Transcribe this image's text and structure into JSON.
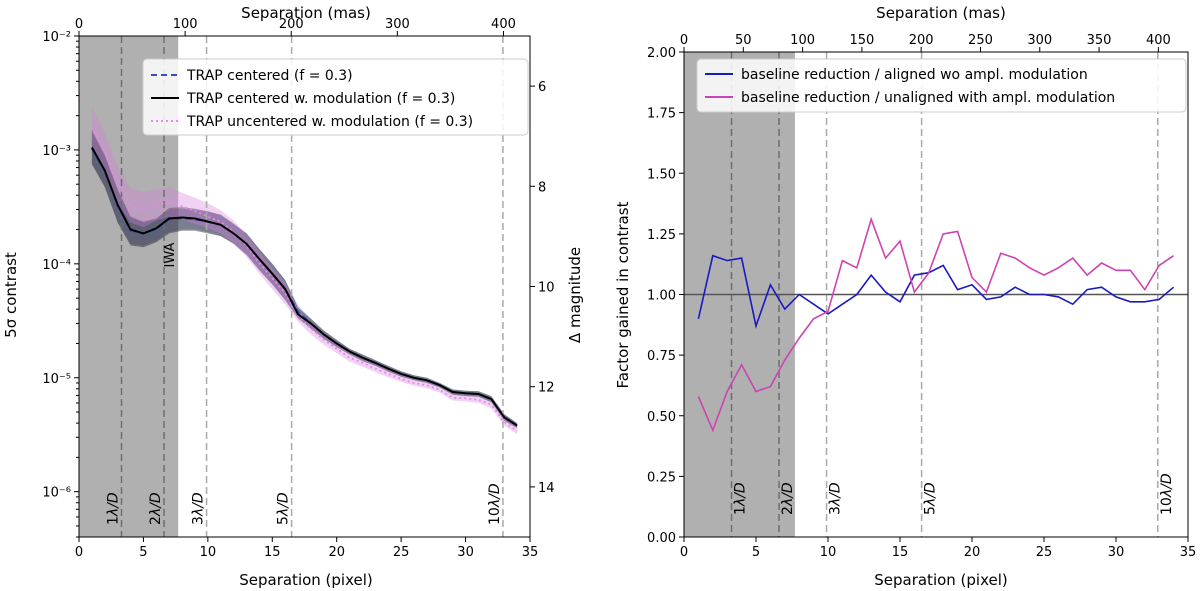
{
  "chart_data": [
    {
      "type": "line",
      "id": "left",
      "xlabel": "Separation (pixel)",
      "x2label": "Separation (mas)",
      "ylabel": "5σ contrast",
      "y2label": "Δ magnitude",
      "xlim": [
        0,
        35
      ],
      "x2lim": [
        0,
        425
      ],
      "ylim": [
        4e-07,
        0.01
      ],
      "y2lim": [
        5,
        15
      ],
      "yscale": "log",
      "xticks": [
        0,
        5,
        10,
        15,
        20,
        25,
        30,
        35
      ],
      "x2ticks": [
        0,
        100,
        200,
        300,
        400
      ],
      "yticks": [
        {
          "v": 1e-06,
          "label": "10⁻⁶"
        },
        {
          "v": 1e-05,
          "label": "10⁻⁵"
        },
        {
          "v": 0.0001,
          "label": "10⁻⁴"
        },
        {
          "v": 0.001,
          "label": "10⁻³"
        },
        {
          "v": 0.01,
          "label": "10⁻²"
        }
      ],
      "y2ticks": [
        6,
        8,
        10,
        12,
        14
      ],
      "shaded_region": {
        "from": 0,
        "to": 7.7,
        "label": "IWA"
      },
      "vlines": [
        {
          "x": 3.3,
          "label": "1λ/D"
        },
        {
          "x": 6.6,
          "label": "2λ/D"
        },
        {
          "x": 9.9,
          "label": "3λ/D"
        },
        {
          "x": 16.5,
          "label": "5λ/D"
        },
        {
          "x": 32.9,
          "label": "10λ/D"
        }
      ],
      "x": [
        1,
        2,
        3,
        4,
        5,
        6,
        7,
        8,
        9,
        10,
        11,
        12,
        13,
        14,
        15,
        16,
        17,
        18,
        19,
        20,
        21,
        22,
        23,
        24,
        25,
        26,
        27,
        28,
        29,
        30,
        31,
        32,
        33,
        34
      ],
      "series": [
        {
          "name": "TRAP centered (f = 0.3)",
          "color": "#3b4bc8",
          "style": "dashed",
          "values": [
            0.00102,
            0.00065,
            0.00032,
            0.000195,
            0.000185,
            0.0002,
            0.000245,
            0.00025,
            0.000245,
            0.000235,
            0.00022,
            0.000185,
            0.00015,
            0.00011,
            8.2e-05,
            6e-05,
            3.8e-05,
            3e-05,
            2.4e-05,
            2e-05,
            1.7e-05,
            1.5e-05,
            1.35e-05,
            1.2e-05,
            1.08e-05,
            1e-05,
            9.5e-06,
            8.6e-06,
            7.5e-06,
            7.3e-06,
            7.2e-06,
            6.5e-06,
            4.5e-06,
            3.8e-06
          ],
          "band_lo": [
            0.00075,
            0.00048,
            0.00023,
            0.00015,
            0.000145,
            0.00016,
            0.00019,
            0.0002,
            0.0002,
            0.00019,
            0.000175,
            0.00015,
            0.00012,
            8.8e-05,
            6.6e-05,
            4.8e-05,
            3.4e-05,
            2.7e-05,
            2.2e-05,
            1.85e-05,
            1.6e-05,
            1.4e-05,
            1.27e-05,
            1.13e-05,
            1.02e-05,
            9.5e-06,
            9e-06,
            8.2e-06,
            7.1e-06,
            6.9e-06,
            6.8e-06,
            6.1e-06,
            4.2e-06,
            3.6e-06
          ],
          "band_hi": [
            0.0014,
            0.00088,
            0.00044,
            0.000255,
            0.00023,
            0.000245,
            0.0003,
            0.000305,
            0.000295,
            0.000285,
            0.00027,
            0.000225,
            0.000185,
            0.000135,
            0.0001,
            7.2e-05,
            4.3e-05,
            3.3e-05,
            2.6e-05,
            2.15e-05,
            1.8e-05,
            1.6e-05,
            1.43e-05,
            1.27e-05,
            1.14e-05,
            1.05e-05,
            1e-05,
            9e-06,
            7.9e-06,
            7.7e-06,
            7.6e-06,
            6.9e-06,
            4.8e-06,
            4e-06
          ]
        },
        {
          "name": "TRAP centered w. modulation (f = 0.3)",
          "color": "#000000",
          "style": "solid",
          "values": [
            0.00105,
            0.00066,
            0.00033,
            0.0002,
            0.000185,
            0.000205,
            0.00025,
            0.000255,
            0.00025,
            0.000235,
            0.00022,
            0.000185,
            0.00015,
            0.00011,
            8.2e-05,
            6e-05,
            3.6e-05,
            3e-05,
            2.4e-05,
            2e-05,
            1.7e-05,
            1.5e-05,
            1.35e-05,
            1.2e-05,
            1.08e-05,
            1e-05,
            9.5e-06,
            8.6e-06,
            7.5e-06,
            7.3e-06,
            7.2e-06,
            6.5e-06,
            4.5e-06,
            3.8e-06
          ],
          "band_lo": [
            0.00075,
            0.00047,
            0.00023,
            0.000145,
            0.00014,
            0.000155,
            0.000185,
            0.000195,
            0.000195,
            0.000185,
            0.000175,
            0.00015,
            0.00012,
            8.8e-05,
            6.6e-05,
            4.8e-05,
            3.3e-05,
            2.7e-05,
            2.2e-05,
            1.85e-05,
            1.6e-05,
            1.4e-05,
            1.27e-05,
            1.13e-05,
            1.02e-05,
            9.5e-06,
            9e-06,
            8.2e-06,
            7.1e-06,
            6.9e-06,
            6.8e-06,
            6.1e-06,
            4.2e-06,
            3.6e-06
          ],
          "band_hi": [
            0.0015,
            0.0009,
            0.00045,
            0.00026,
            0.000235,
            0.00025,
            0.00031,
            0.000315,
            0.000305,
            0.00029,
            0.00027,
            0.000225,
            0.000185,
            0.000135,
            0.0001,
            7.2e-05,
            4.1e-05,
            3.3e-05,
            2.6e-05,
            2.15e-05,
            1.8e-05,
            1.6e-05,
            1.43e-05,
            1.27e-05,
            1.14e-05,
            1.05e-05,
            1e-05,
            9e-06,
            7.9e-06,
            7.7e-06,
            7.6e-06,
            6.9e-06,
            4.8e-06,
            4e-06
          ]
        },
        {
          "name": "TRAP uncentered w. modulation (f = 0.3)",
          "color": "#e58ae8",
          "style": "dotted",
          "values": [
            0.0016,
            0.00095,
            0.0005,
            0.00033,
            0.0003,
            0.00033,
            0.00035,
            0.00032,
            0.00029,
            0.00026,
            0.000235,
            0.00019,
            0.000145,
            0.000102,
            7.5e-05,
            5.5e-05,
            3.5e-05,
            2.7e-05,
            2.15e-05,
            1.8e-05,
            1.5e-05,
            1.35e-05,
            1.2e-05,
            1.08e-05,
            9.8e-06,
            9e-06,
            8.6e-06,
            7.8e-06,
            6.7e-06,
            6.6e-06,
            6.4e-06,
            5.8e-06,
            4.1e-06,
            3.4e-06
          ],
          "band_lo": [
            0.0011,
            0.00065,
            0.00034,
            0.00023,
            0.00021,
            0.00024,
            0.00026,
            0.000245,
            0.000225,
            0.000205,
            0.000185,
            0.00015,
            0.000115,
            8.2e-05,
            6e-05,
            4.4e-05,
            3.1e-05,
            2.4e-05,
            1.95e-05,
            1.65e-05,
            1.38e-05,
            1.25e-05,
            1.12e-05,
            1.01e-05,
            9.2e-06,
            8.5e-06,
            8.1e-06,
            7.4e-06,
            6.3e-06,
            6.2e-06,
            6e-06,
            5.4e-06,
            3.8e-06,
            3.2e-06
          ],
          "band_hi": [
            0.0024,
            0.0014,
            0.00072,
            0.00046,
            0.00043,
            0.00045,
            0.00047,
            0.00042,
            0.00038,
            0.00034,
            0.000295,
            0.00024,
            0.00018,
            0.000128,
            9.2e-05,
            6.8e-05,
            3.9e-05,
            3e-05,
            2.35e-05,
            1.95e-05,
            1.62e-05,
            1.45e-05,
            1.3e-05,
            1.16e-05,
            1.05e-05,
            9.6e-06,
            9.2e-06,
            8.3e-06,
            7.1e-06,
            7e-06,
            6.8e-06,
            6.2e-06,
            4.4e-06,
            3.7e-06
          ]
        }
      ]
    },
    {
      "type": "line",
      "id": "right",
      "xlabel": "Separation (pixel)",
      "x2label": "Separation (mas)",
      "ylabel": "Factor gained in contrast",
      "xlim": [
        0,
        35
      ],
      "x2lim": [
        0,
        425
      ],
      "ylim": [
        0,
        2
      ],
      "xticks": [
        0,
        5,
        10,
        15,
        20,
        25,
        30,
        35
      ],
      "x2ticks": [
        0,
        50,
        100,
        150,
        200,
        250,
        300,
        350,
        400
      ],
      "yticks": [
        "0.00",
        "0.25",
        "0.50",
        "0.75",
        "1.00",
        "1.25",
        "1.50",
        "1.75",
        "2.00"
      ],
      "hline": 1.0,
      "shaded_region": {
        "from": 0,
        "to": 7.7
      },
      "vlines": [
        {
          "x": 3.3,
          "label": "1λ/D"
        },
        {
          "x": 6.6,
          "label": "2λ/D"
        },
        {
          "x": 9.9,
          "label": "3λ/D"
        },
        {
          "x": 16.5,
          "label": "5λ/D"
        },
        {
          "x": 32.9,
          "label": "10λ/D"
        }
      ],
      "x": [
        1,
        2,
        3,
        4,
        5,
        6,
        7,
        8,
        9,
        10,
        11,
        12,
        13,
        14,
        15,
        16,
        17,
        18,
        19,
        20,
        21,
        22,
        23,
        24,
        25,
        26,
        27,
        28,
        29,
        30,
        31,
        32,
        33,
        34
      ],
      "series": [
        {
          "name": "baseline reduction / aligned wo ampl. modulation",
          "color": "#1a1ac0",
          "values": [
            0.9,
            1.16,
            1.14,
            1.15,
            0.87,
            1.04,
            0.94,
            1.0,
            0.96,
            0.92,
            0.96,
            1.0,
            1.08,
            1.01,
            0.97,
            1.08,
            1.09,
            1.12,
            1.02,
            1.04,
            0.98,
            0.99,
            1.03,
            1.0,
            1.0,
            0.99,
            0.96,
            1.02,
            1.03,
            0.99,
            0.97,
            0.97,
            0.98,
            1.03
          ]
        },
        {
          "name": "baseline reduction / unaligned with ampl. modulation",
          "color": "#cc44b0",
          "values": [
            0.58,
            0.44,
            0.6,
            0.71,
            0.6,
            0.62,
            0.73,
            0.82,
            0.9,
            0.93,
            1.14,
            1.11,
            1.31,
            1.15,
            1.22,
            1.01,
            1.09,
            1.25,
            1.26,
            1.07,
            1.01,
            1.17,
            1.15,
            1.11,
            1.08,
            1.11,
            1.15,
            1.08,
            1.13,
            1.1,
            1.1,
            1.02,
            1.12,
            1.16
          ]
        }
      ]
    }
  ]
}
